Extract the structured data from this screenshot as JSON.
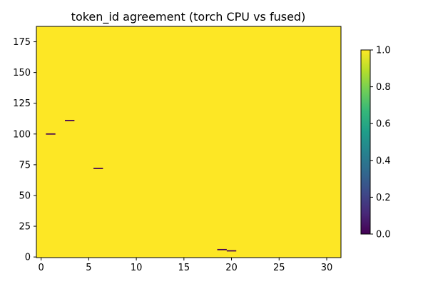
{
  "chart_data": {
    "type": "heatmap",
    "title": "token_id agreement (torch CPU vs fused)",
    "xlabel": "",
    "ylabel": "",
    "xlim": [
      -0.5,
      31.5
    ],
    "ylim": [
      -0.5,
      187.5
    ],
    "n_cols": 32,
    "n_rows": 188,
    "default_value": 1.0,
    "x_ticks": [
      0,
      5,
      10,
      15,
      20,
      25,
      30
    ],
    "y_ticks": [
      0,
      25,
      50,
      75,
      100,
      125,
      150,
      175
    ],
    "mismatch_cells": [
      {
        "col": 1,
        "row": 100,
        "value": 0.0
      },
      {
        "col": 3,
        "row": 111,
        "value": 0.0
      },
      {
        "col": 6,
        "row": 72,
        "value": 0.0
      },
      {
        "col": 19,
        "row": 6,
        "value": 0.0
      },
      {
        "col": 20,
        "row": 5,
        "value": 0.0
      }
    ],
    "colorbar": {
      "vmin": 0.0,
      "vmax": 1.0,
      "ticks": [
        "0.0",
        "0.2",
        "0.4",
        "0.6",
        "0.8",
        "1.0"
      ],
      "colormap": "viridis"
    },
    "colors": {
      "high": "#fde725",
      "low": "#440154",
      "viridis_stops": [
        "#440154",
        "#482878",
        "#3e4989",
        "#31688e",
        "#26828e",
        "#1f9e89",
        "#35b779",
        "#6ece58",
        "#b5de2b",
        "#fde725"
      ]
    },
    "grid": false
  }
}
